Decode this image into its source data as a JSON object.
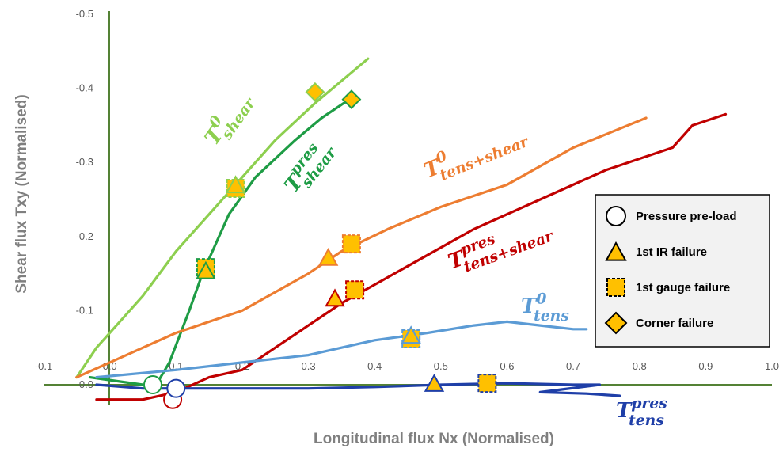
{
  "chart_data": {
    "type": "line",
    "xlabel": "Longitudinal flux Nx (Normalised)",
    "ylabel": "Shear flux Txy (Normalised)",
    "xlim": [
      -0.1,
      1.0
    ],
    "ylim": [
      0.05,
      -0.5
    ],
    "x_ticks": [
      "-0.1",
      "0.0",
      "0.1",
      "0.2",
      "0.3",
      "0.4",
      "0.5",
      "0.6",
      "0.7",
      "0.8",
      "0.9",
      "1.0"
    ],
    "y_ticks": [
      "-0.5",
      "-0.4",
      "-0.3",
      "-0.2",
      "-0.1",
      "0.0"
    ],
    "grid": false,
    "legend_position": "right",
    "legend": [
      {
        "label": "Pressure pre-load",
        "marker": "circle"
      },
      {
        "label": "1st IR failure",
        "marker": "triangle"
      },
      {
        "label": "1st gauge failure",
        "marker": "square-dashed"
      },
      {
        "label": "Corner failure",
        "marker": "diamond"
      }
    ],
    "series": [
      {
        "label": {
          "base": "T",
          "sup": "0",
          "sub": "shear"
        },
        "color": "#8dcf4f",
        "points": [
          [
            -0.05,
            -0.01
          ],
          [
            -0.02,
            -0.05
          ],
          [
            0.02,
            -0.09
          ],
          [
            0.05,
            -0.12
          ],
          [
            0.1,
            -0.18
          ],
          [
            0.15,
            -0.23
          ],
          [
            0.2,
            -0.28
          ],
          [
            0.25,
            -0.33
          ],
          [
            0.31,
            -0.38
          ],
          [
            0.35,
            -0.41
          ],
          [
            0.39,
            -0.44
          ]
        ],
        "markers": [
          {
            "type": "square-dashed",
            "x": 0.19,
            "y": -0.265
          },
          {
            "type": "triangle",
            "x": 0.19,
            "y": -0.268
          },
          {
            "type": "diamond",
            "x": 0.31,
            "y": -0.395
          }
        ]
      },
      {
        "label": {
          "base": "T",
          "sup": "pres",
          "sub": "shear"
        },
        "color": "#1e9c45",
        "points": [
          [
            -0.03,
            -0.01
          ],
          [
            0.05,
            0.0
          ],
          [
            0.07,
            0.0
          ],
          [
            0.09,
            -0.03
          ],
          [
            0.12,
            -0.1
          ],
          [
            0.14,
            -0.15
          ],
          [
            0.18,
            -0.23
          ],
          [
            0.22,
            -0.28
          ],
          [
            0.28,
            -0.33
          ],
          [
            0.32,
            -0.36
          ],
          [
            0.37,
            -0.39
          ]
        ],
        "markers": [
          {
            "type": "circle",
            "x": 0.065,
            "y": 0.0
          },
          {
            "type": "square-dashed",
            "x": 0.145,
            "y": -0.158
          },
          {
            "type": "triangle",
            "x": 0.145,
            "y": -0.152
          },
          {
            "type": "diamond",
            "x": 0.365,
            "y": -0.385
          }
        ]
      },
      {
        "label": {
          "base": "T",
          "sup": "0",
          "sub": "tens+shear"
        },
        "color": "#ed7d31",
        "points": [
          [
            -0.05,
            -0.01
          ],
          [
            0.0,
            -0.03
          ],
          [
            0.05,
            -0.05
          ],
          [
            0.1,
            -0.07
          ],
          [
            0.2,
            -0.1
          ],
          [
            0.3,
            -0.15
          ],
          [
            0.35,
            -0.18
          ],
          [
            0.42,
            -0.21
          ],
          [
            0.5,
            -0.24
          ],
          [
            0.6,
            -0.27
          ],
          [
            0.7,
            -0.32
          ],
          [
            0.81,
            -0.36
          ]
        ],
        "markers": [
          {
            "type": "triangle",
            "x": 0.33,
            "y": -0.17
          },
          {
            "type": "square-dashed",
            "x": 0.365,
            "y": -0.19
          }
        ]
      },
      {
        "label": {
          "base": "T",
          "sup": "pres",
          "sub": "tens+shear"
        },
        "color": "#c00000",
        "points": [
          [
            -0.02,
            0.02
          ],
          [
            0.05,
            0.02
          ],
          [
            0.1,
            0.01
          ],
          [
            0.15,
            -0.01
          ],
          [
            0.2,
            -0.02
          ],
          [
            0.25,
            -0.05
          ],
          [
            0.3,
            -0.08
          ],
          [
            0.35,
            -0.11
          ],
          [
            0.45,
            -0.16
          ],
          [
            0.55,
            -0.21
          ],
          [
            0.65,
            -0.25
          ],
          [
            0.75,
            -0.29
          ],
          [
            0.85,
            -0.32
          ],
          [
            0.88,
            -0.35
          ],
          [
            0.93,
            -0.365
          ]
        ],
        "markers": [
          {
            "type": "circle",
            "x": 0.095,
            "y": 0.02
          },
          {
            "type": "triangle",
            "x": 0.34,
            "y": -0.115
          },
          {
            "type": "square-dashed",
            "x": 0.37,
            "y": -0.128
          }
        ]
      },
      {
        "label": {
          "base": "T",
          "sup": "0",
          "sub": "tens"
        },
        "color": "#5b9bd5",
        "points": [
          [
            -0.02,
            -0.01
          ],
          [
            0.1,
            -0.02
          ],
          [
            0.2,
            -0.03
          ],
          [
            0.3,
            -0.04
          ],
          [
            0.4,
            -0.06
          ],
          [
            0.48,
            -0.07
          ],
          [
            0.55,
            -0.08
          ],
          [
            0.6,
            -0.085
          ],
          [
            0.65,
            -0.08
          ],
          [
            0.7,
            -0.075
          ],
          [
            0.72,
            -0.075
          ]
        ],
        "markers": [
          {
            "type": "square-dashed",
            "x": 0.455,
            "y": -0.062
          },
          {
            "type": "triangle",
            "x": 0.455,
            "y": -0.065
          }
        ]
      },
      {
        "label": {
          "base": "T",
          "sup": "pres",
          "sub": "tens"
        },
        "color": "#1f3fa8",
        "points": [
          [
            -0.02,
            0.0
          ],
          [
            0.05,
            0.005
          ],
          [
            0.1,
            0.005
          ],
          [
            0.2,
            0.005
          ],
          [
            0.3,
            0.005
          ],
          [
            0.4,
            0.003
          ],
          [
            0.5,
            0.0
          ],
          [
            0.6,
            -0.002
          ],
          [
            0.7,
            0.0
          ],
          [
            0.74,
            0.0
          ],
          [
            0.65,
            0.01
          ],
          [
            0.72,
            0.012
          ],
          [
            0.77,
            0.015
          ]
        ],
        "markers": [
          {
            "type": "circle",
            "x": 0.1,
            "y": 0.005
          },
          {
            "type": "triangle",
            "x": 0.49,
            "y": 0.0
          },
          {
            "type": "square-dashed",
            "x": 0.57,
            "y": -0.002
          }
        ]
      }
    ]
  }
}
